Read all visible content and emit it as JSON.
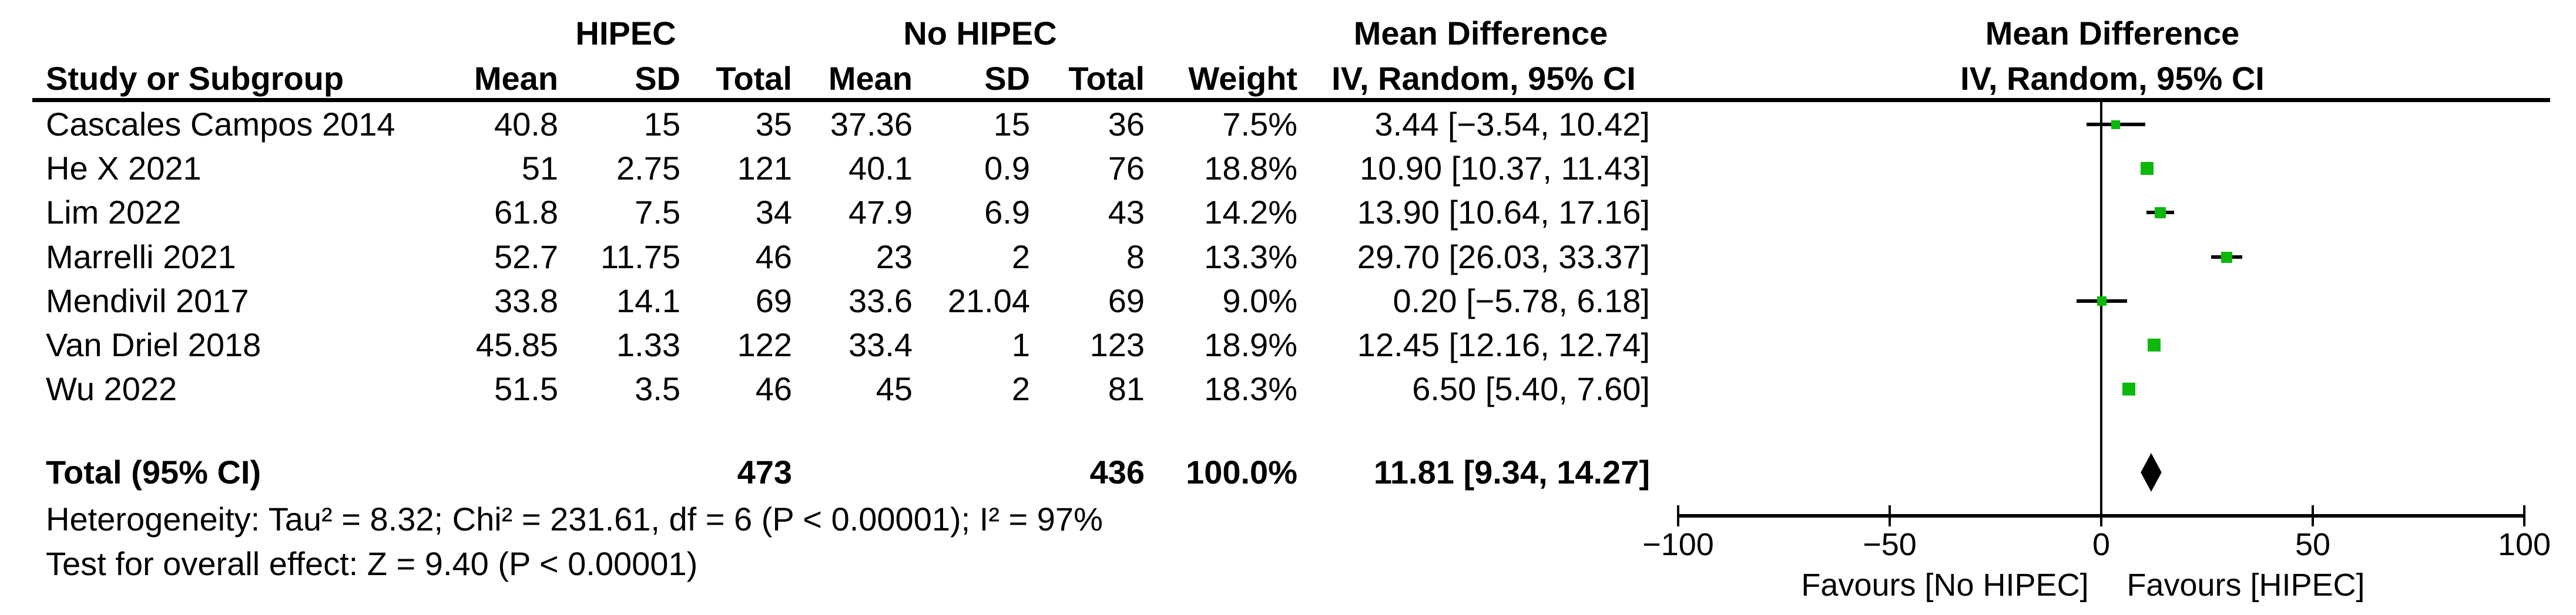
{
  "table": {
    "group_headers": {
      "hipec": "HIPEC",
      "no_hipec": "No HIPEC",
      "md": "Mean Difference",
      "md_plot": "Mean Difference"
    },
    "col_headers": {
      "study": "Study or Subgroup",
      "mean": "Mean",
      "sd": "SD",
      "total": "Total",
      "weight": "Weight",
      "method": "IV, Random, 95% CI",
      "method_plot": "IV, Random, 95% CI"
    },
    "rows": [
      {
        "study": "Cascales Campos 2014",
        "mean1": "40.8",
        "sd1": "15",
        "total1": "35",
        "mean2": "37.36",
        "sd2": "15",
        "total2": "36",
        "weight": "7.5%",
        "md_text": "3.44 [−3.54, 10.42]"
      },
      {
        "study": "He X 2021",
        "mean1": "51",
        "sd1": "2.75",
        "total1": "121",
        "mean2": "40.1",
        "sd2": "0.9",
        "total2": "76",
        "weight": "18.8%",
        "md_text": "10.90 [10.37, 11.43]"
      },
      {
        "study": "Lim 2022",
        "mean1": "61.8",
        "sd1": "7.5",
        "total1": "34",
        "mean2": "47.9",
        "sd2": "6.9",
        "total2": "43",
        "weight": "14.2%",
        "md_text": "13.90 [10.64, 17.16]"
      },
      {
        "study": "Marrelli 2021",
        "mean1": "52.7",
        "sd1": "11.75",
        "total1": "46",
        "mean2": "23",
        "sd2": "2",
        "total2": "8",
        "weight": "13.3%",
        "md_text": "29.70 [26.03, 33.37]"
      },
      {
        "study": "Mendivil 2017",
        "mean1": "33.8",
        "sd1": "14.1",
        "total1": "69",
        "mean2": "33.6",
        "sd2": "21.04",
        "total2": "69",
        "weight": "9.0%",
        "md_text": "0.20 [−5.78, 6.18]"
      },
      {
        "study": "Van Driel 2018",
        "mean1": "45.85",
        "sd1": "1.33",
        "total1": "122",
        "mean2": "33.4",
        "sd2": "1",
        "total2": "123",
        "weight": "18.9%",
        "md_text": "12.45 [12.16, 12.74]"
      },
      {
        "study": "Wu 2022",
        "mean1": "51.5",
        "sd1": "3.5",
        "total1": "46",
        "mean2": "45",
        "sd2": "2",
        "total2": "81",
        "weight": "18.3%",
        "md_text": "6.50 [5.40, 7.60]"
      }
    ],
    "total_row": {
      "label": "Total (95% CI)",
      "total1": "473",
      "total2": "436",
      "weight": "100.0%",
      "md_text": "11.81 [9.34, 14.27]"
    },
    "footer": {
      "heterogeneity": "Heterogeneity: Tau² = 8.32; Chi² = 231.61, df = 6 (P < 0.00001); I² = 97%",
      "overall_effect": "Test for overall effect: Z = 9.40 (P < 0.00001)"
    }
  },
  "chart_data": {
    "type": "scatter",
    "subtype": "forest-plot",
    "title": "Mean Difference, IV, Random, 95% CI",
    "x_axis": {
      "range": [
        -100,
        100
      ],
      "ticks": [
        -100,
        -50,
        0,
        50,
        100
      ],
      "tick_labels": [
        "−100",
        "−50",
        "0",
        "50",
        "100"
      ]
    },
    "points": [
      {
        "study": "Cascales Campos 2014",
        "md": 3.44,
        "ci_low": -3.54,
        "ci_high": 10.42,
        "weight_pct": 7.5
      },
      {
        "study": "He X 2021",
        "md": 10.9,
        "ci_low": 10.37,
        "ci_high": 11.43,
        "weight_pct": 18.8
      },
      {
        "study": "Lim 2022",
        "md": 13.9,
        "ci_low": 10.64,
        "ci_high": 17.16,
        "weight_pct": 14.2
      },
      {
        "study": "Marrelli 2021",
        "md": 29.7,
        "ci_low": 26.03,
        "ci_high": 33.37,
        "weight_pct": 13.3
      },
      {
        "study": "Mendivil 2017",
        "md": 0.2,
        "ci_low": -5.78,
        "ci_high": 6.18,
        "weight_pct": 9.0
      },
      {
        "study": "Van Driel 2018",
        "md": 12.45,
        "ci_low": 12.16,
        "ci_high": 12.74,
        "weight_pct": 18.9
      },
      {
        "study": "Wu 2022",
        "md": 6.5,
        "ci_low": 5.4,
        "ci_high": 7.6,
        "weight_pct": 18.3
      }
    ],
    "summary": {
      "label": "Total (95% CI)",
      "md": 11.81,
      "ci_low": 9.34,
      "ci_high": 14.27,
      "weight_pct": 100.0
    },
    "favours_left": "Favours [No HIPEC]",
    "favours_right": "Favours [HIPEC]",
    "legend_position": "none",
    "grid": false
  },
  "colors": {
    "marker_green": "#0cb80c",
    "diamond_black": "#000000",
    "line_black": "#000000"
  }
}
